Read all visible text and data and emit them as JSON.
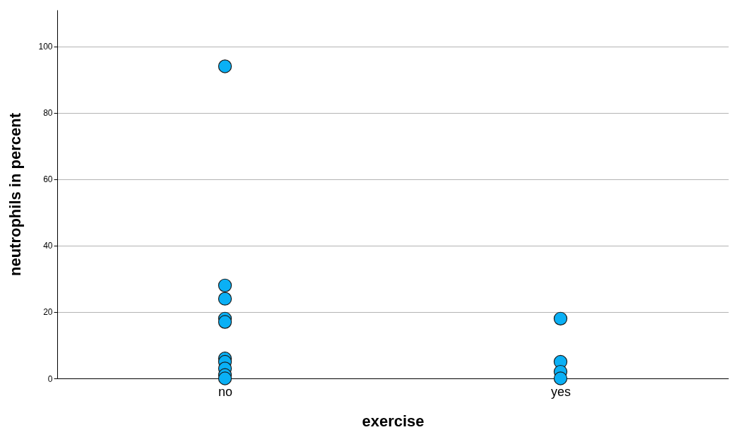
{
  "chart_data": {
    "type": "scatter",
    "xlabel": "exercise",
    "ylabel": "neutrophils in percent",
    "categories": [
      "no",
      "yes"
    ],
    "series": [
      {
        "color": "#0ab0f5",
        "x": [
          "no",
          "no",
          "no",
          "no",
          "no",
          "no",
          "no",
          "no",
          "no",
          "no",
          "yes",
          "yes",
          "yes",
          "yes"
        ],
        "values": [
          94,
          28,
          24,
          18,
          17,
          6,
          5,
          3,
          1,
          0,
          18,
          5,
          2,
          0
        ]
      }
    ],
    "ylim": [
      0,
      111
    ],
    "yticks": [
      0,
      20,
      40,
      60,
      80,
      100
    ],
    "grid": "y",
    "marker": "circle"
  }
}
